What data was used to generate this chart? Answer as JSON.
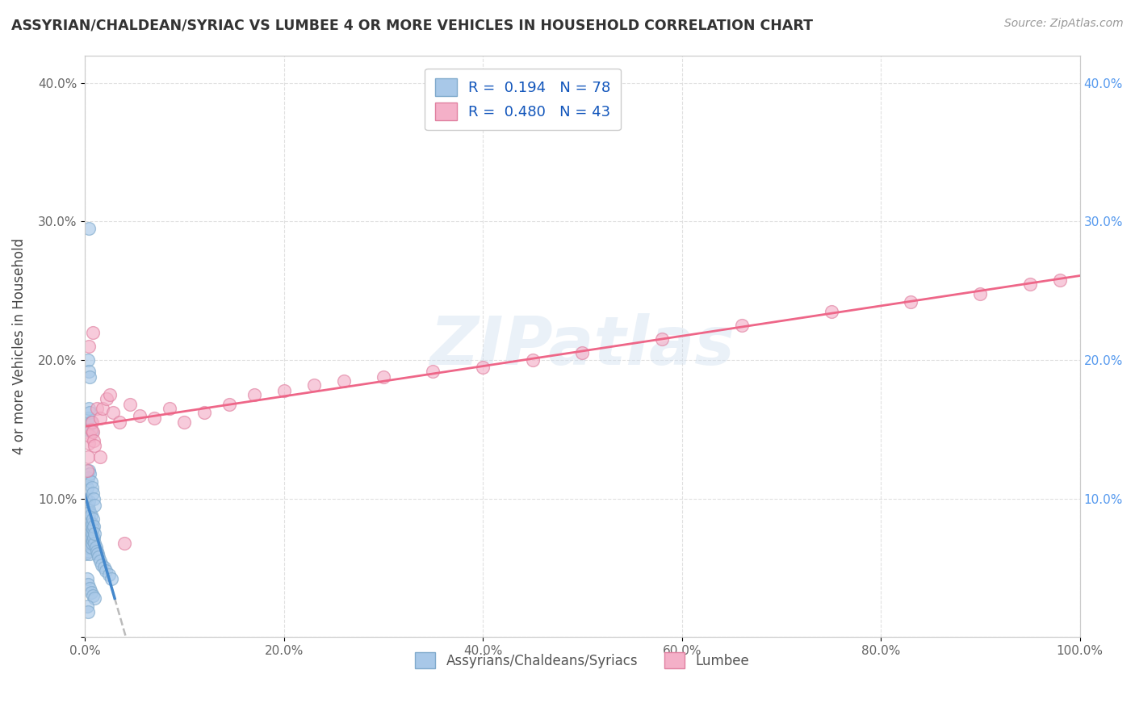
{
  "title": "ASSYRIAN/CHALDEAN/SYRIAC VS LUMBEE 4 OR MORE VEHICLES IN HOUSEHOLD CORRELATION CHART",
  "source": "Source: ZipAtlas.com",
  "ylabel": "4 or more Vehicles in Household",
  "r_assyrian": 0.194,
  "n_assyrian": 78,
  "r_lumbee": 0.48,
  "n_lumbee": 43,
  "color_assyrian": "#a8c8e8",
  "color_lumbee": "#f4b0c8",
  "edge_assyrian": "#80aacc",
  "edge_lumbee": "#e080a0",
  "trendline_blue_color": "#4488cc",
  "trendline_gray_color": "#bbbbbb",
  "trendline_pink_color": "#ee6688",
  "legend_label_assyrian": "Assyrians/Chaldeans/Syriacs",
  "legend_label_lumbee": "Lumbee",
  "watermark": "ZIPatlas",
  "xlim": [
    0.0,
    1.0
  ],
  "ylim": [
    0.0,
    0.42
  ],
  "xticks": [
    0.0,
    0.2,
    0.4,
    0.6,
    0.8,
    1.0
  ],
  "yticks": [
    0.0,
    0.1,
    0.2,
    0.3,
    0.4
  ],
  "xticklabels": [
    "0.0%",
    "20.0%",
    "40.0%",
    "60.0%",
    "80.0%",
    "100.0%"
  ],
  "yticklabels_left": [
    "",
    "10.0%",
    "20.0%",
    "30.0%",
    "40.0%"
  ],
  "yticklabels_right": [
    "",
    "10.0%",
    "20.0%",
    "30.0%",
    "40.0%"
  ],
  "assyrian_x": [
    0.001,
    0.001,
    0.001,
    0.001,
    0.002,
    0.002,
    0.002,
    0.002,
    0.002,
    0.003,
    0.003,
    0.003,
    0.003,
    0.003,
    0.003,
    0.004,
    0.004,
    0.004,
    0.004,
    0.004,
    0.004,
    0.005,
    0.005,
    0.005,
    0.005,
    0.005,
    0.006,
    0.006,
    0.006,
    0.006,
    0.007,
    0.007,
    0.007,
    0.008,
    0.008,
    0.008,
    0.009,
    0.009,
    0.01,
    0.01,
    0.011,
    0.012,
    0.013,
    0.014,
    0.015,
    0.017,
    0.019,
    0.021,
    0.024,
    0.027,
    0.001,
    0.002,
    0.003,
    0.004,
    0.005,
    0.006,
    0.007,
    0.008,
    0.009,
    0.01,
    0.002,
    0.003,
    0.004,
    0.005,
    0.006,
    0.007,
    0.003,
    0.004,
    0.005,
    0.004,
    0.002,
    0.003,
    0.005,
    0.006,
    0.008,
    0.01,
    0.002,
    0.003
  ],
  "assyrian_y": [
    0.06,
    0.07,
    0.075,
    0.08,
    0.065,
    0.075,
    0.082,
    0.088,
    0.092,
    0.068,
    0.072,
    0.078,
    0.085,
    0.09,
    0.095,
    0.062,
    0.07,
    0.078,
    0.085,
    0.092,
    0.098,
    0.06,
    0.068,
    0.075,
    0.082,
    0.09,
    0.065,
    0.072,
    0.08,
    0.088,
    0.068,
    0.075,
    0.082,
    0.07,
    0.078,
    0.085,
    0.072,
    0.08,
    0.068,
    0.075,
    0.065,
    0.062,
    0.06,
    0.058,
    0.055,
    0.052,
    0.05,
    0.048,
    0.045,
    0.042,
    0.1,
    0.108,
    0.115,
    0.12,
    0.118,
    0.112,
    0.108,
    0.104,
    0.1,
    0.095,
    0.15,
    0.158,
    0.165,
    0.162,
    0.155,
    0.148,
    0.2,
    0.192,
    0.188,
    0.295,
    0.042,
    0.038,
    0.035,
    0.032,
    0.03,
    0.028,
    0.022,
    0.018
  ],
  "lumbee_x": [
    0.002,
    0.003,
    0.004,
    0.005,
    0.006,
    0.007,
    0.008,
    0.009,
    0.01,
    0.012,
    0.015,
    0.018,
    0.022,
    0.028,
    0.035,
    0.045,
    0.055,
    0.07,
    0.085,
    0.1,
    0.12,
    0.145,
    0.17,
    0.2,
    0.23,
    0.26,
    0.3,
    0.35,
    0.4,
    0.45,
    0.5,
    0.58,
    0.66,
    0.75,
    0.83,
    0.9,
    0.95,
    0.98,
    0.004,
    0.008,
    0.015,
    0.025,
    0.04
  ],
  "lumbee_y": [
    0.12,
    0.13,
    0.14,
    0.145,
    0.15,
    0.155,
    0.148,
    0.142,
    0.138,
    0.165,
    0.158,
    0.165,
    0.172,
    0.162,
    0.155,
    0.168,
    0.16,
    0.158,
    0.165,
    0.155,
    0.162,
    0.168,
    0.175,
    0.178,
    0.182,
    0.185,
    0.188,
    0.192,
    0.195,
    0.2,
    0.205,
    0.215,
    0.225,
    0.235,
    0.242,
    0.248,
    0.255,
    0.258,
    0.21,
    0.22,
    0.13,
    0.175,
    0.068
  ]
}
